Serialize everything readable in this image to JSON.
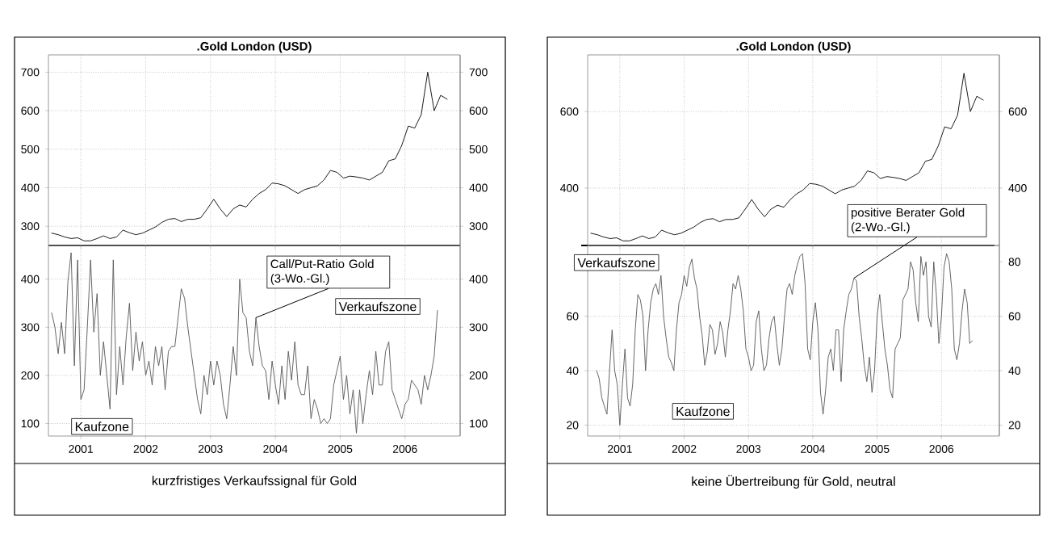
{
  "chart_data": [
    {
      "type": "line",
      "title": ".Gold London (USD)",
      "xlim": [
        2000.5,
        2006.85
      ],
      "ylim": [
        250,
        745
      ],
      "xticks": [
        2001,
        2002,
        2003,
        2004,
        2005,
        2006
      ],
      "yticks": [
        300,
        400,
        500,
        600,
        700
      ],
      "y2lim": [
        250,
        745
      ],
      "y2ticks": [
        300,
        400,
        500,
        600,
        700
      ],
      "grid": true,
      "tick_labels": "y",
      "x": [
        2000.55,
        2000.65,
        2000.75,
        2000.85,
        2000.95,
        2001.05,
        2001.15,
        2001.25,
        2001.35,
        2001.45,
        2001.55,
        2001.65,
        2001.75,
        2001.85,
        2001.95,
        2002.05,
        2002.15,
        2002.25,
        2002.35,
        2002.45,
        2002.55,
        2002.65,
        2002.75,
        2002.85,
        2002.95,
        2003.05,
        2003.15,
        2003.25,
        2003.35,
        2003.45,
        2003.55,
        2003.65,
        2003.75,
        2003.85,
        2003.95,
        2004.05,
        2004.15,
        2004.25,
        2004.35,
        2004.45,
        2004.55,
        2004.65,
        2004.75,
        2004.85,
        2004.95,
        2005.05,
        2005.15,
        2005.25,
        2005.35,
        2005.45,
        2005.55,
        2005.65,
        2005.75,
        2005.85,
        2005.95,
        2006.05,
        2006.15,
        2006.25,
        2006.35,
        2006.45,
        2006.55,
        2006.65
      ],
      "series": [
        {
          "color": "#000000",
          "values": [
            282,
            278,
            272,
            268,
            270,
            262,
            262,
            268,
            275,
            268,
            272,
            290,
            283,
            278,
            282,
            290,
            298,
            310,
            318,
            320,
            312,
            318,
            318,
            322,
            345,
            370,
            345,
            325,
            345,
            355,
            350,
            370,
            385,
            395,
            412,
            410,
            405,
            395,
            385,
            395,
            400,
            405,
            420,
            445,
            440,
            425,
            430,
            428,
            425,
            420,
            430,
            440,
            470,
            475,
            510,
            560,
            555,
            590,
            700,
            600,
            640,
            630
          ]
        }
      ]
    },
    {
      "type": "line",
      "xlim": [
        2000.5,
        2006.85
      ],
      "ylim": [
        74,
        470
      ],
      "xticks": [
        2001,
        2002,
        2003,
        2004,
        2005,
        2006
      ],
      "yticks": [
        100,
        200,
        300,
        400
      ],
      "y2lim": [
        74,
        470
      ],
      "y2ticks": [
        100,
        200,
        300,
        400
      ],
      "grid": true,
      "annotations": [
        {
          "text": "Call/Put-Ratio Gold (3-Wo.-Gl.)",
          "x": 2003.7,
          "y": 320
        },
        "Verkaufszone",
        "Kaufzone",
        "kurzfristiges Verkaufssignal für Gold"
      ],
      "x": [
        2000.55,
        2000.6,
        2000.65,
        2000.7,
        2000.75,
        2000.8,
        2000.85,
        2000.9,
        2000.95,
        2001.0,
        2001.05,
        2001.1,
        2001.15,
        2001.2,
        2001.25,
        2001.3,
        2001.35,
        2001.4,
        2001.45,
        2001.5,
        2001.55,
        2001.6,
        2001.65,
        2001.7,
        2001.75,
        2001.8,
        2001.85,
        2001.9,
        2001.95,
        2002.0,
        2002.05,
        2002.1,
        2002.15,
        2002.2,
        2002.25,
        2002.3,
        2002.35,
        2002.4,
        2002.45,
        2002.5,
        2002.55,
        2002.6,
        2002.65,
        2002.7,
        2002.75,
        2002.8,
        2002.85,
        2002.9,
        2002.95,
        2003.0,
        2003.05,
        2003.1,
        2003.15,
        2003.2,
        2003.25,
        2003.3,
        2003.35,
        2003.4,
        2003.45,
        2003.5,
        2003.55,
        2003.6,
        2003.65,
        2003.7,
        2003.75,
        2003.8,
        2003.85,
        2003.9,
        2003.95,
        2004.0,
        2004.05,
        2004.1,
        2004.15,
        2004.2,
        2004.25,
        2004.3,
        2004.35,
        2004.4,
        2004.45,
        2004.5,
        2004.55,
        2004.6,
        2004.65,
        2004.7,
        2004.75,
        2004.8,
        2004.85,
        2004.9,
        2004.95,
        2005.0,
        2005.05,
        2005.1,
        2005.15,
        2005.2,
        2005.25,
        2005.3,
        2005.35,
        2005.4,
        2005.45,
        2005.5,
        2005.55,
        2005.6,
        2005.65,
        2005.7,
        2005.75,
        2005.8,
        2005.85,
        2005.9,
        2005.95,
        2006.0,
        2006.05,
        2006.1,
        2006.15,
        2006.2,
        2006.25,
        2006.3,
        2006.35,
        2006.4,
        2006.45,
        2006.5
      ],
      "series": [
        {
          "color": "#555555",
          "values": [
            330,
            300,
            245,
            310,
            245,
            395,
            455,
            220,
            440,
            150,
            170,
            300,
            440,
            290,
            370,
            200,
            270,
            200,
            130,
            440,
            160,
            260,
            180,
            280,
            350,
            210,
            290,
            230,
            270,
            200,
            230,
            180,
            260,
            220,
            260,
            170,
            250,
            260,
            260,
            320,
            380,
            360,
            300,
            250,
            200,
            150,
            120,
            200,
            160,
            230,
            180,
            230,
            200,
            140,
            110,
            180,
            260,
            200,
            400,
            330,
            320,
            250,
            220,
            320,
            260,
            220,
            210,
            150,
            230,
            180,
            140,
            220,
            150,
            250,
            190,
            270,
            180,
            160,
            160,
            220,
            110,
            150,
            130,
            100,
            110,
            100,
            110,
            180,
            210,
            240,
            150,
            200,
            120,
            170,
            80,
            170,
            100,
            160,
            210,
            160,
            250,
            180,
            180,
            250,
            270,
            170,
            150,
            130,
            110,
            140,
            150,
            190,
            180,
            170,
            140,
            200,
            170,
            200,
            240,
            335
          ]
        }
      ]
    },
    {
      "type": "line",
      "title": ".Gold London (USD)",
      "xlim": [
        2000.5,
        2006.9
      ],
      "ylim": [
        250,
        748
      ],
      "xticks": [
        2001,
        2002,
        2003,
        2004,
        2005,
        2006
      ],
      "yticks": [
        400,
        600
      ],
      "y2lim": [
        250,
        748
      ],
      "y2ticks": [
        400,
        600
      ],
      "grid": true,
      "tick_labels": "y",
      "x": [
        2000.55,
        2000.65,
        2000.75,
        2000.85,
        2000.95,
        2001.05,
        2001.15,
        2001.25,
        2001.35,
        2001.45,
        2001.55,
        2001.65,
        2001.75,
        2001.85,
        2001.95,
        2002.05,
        2002.15,
        2002.25,
        2002.35,
        2002.45,
        2002.55,
        2002.65,
        2002.75,
        2002.85,
        2002.95,
        2003.05,
        2003.15,
        2003.25,
        2003.35,
        2003.45,
        2003.55,
        2003.65,
        2003.75,
        2003.85,
        2003.95,
        2004.05,
        2004.15,
        2004.25,
        2004.35,
        2004.45,
        2004.55,
        2004.65,
        2004.75,
        2004.85,
        2004.95,
        2005.05,
        2005.15,
        2005.25,
        2005.35,
        2005.45,
        2005.55,
        2005.65,
        2005.75,
        2005.85,
        2005.95,
        2006.05,
        2006.15,
        2006.25,
        2006.35,
        2006.45,
        2006.55,
        2006.65
      ],
      "series": [
        {
          "color": "#000000",
          "values": [
            282,
            278,
            272,
            268,
            270,
            262,
            262,
            268,
            275,
            268,
            272,
            290,
            283,
            278,
            282,
            290,
            298,
            310,
            318,
            320,
            312,
            318,
            318,
            322,
            345,
            370,
            345,
            325,
            345,
            355,
            350,
            370,
            385,
            395,
            412,
            410,
            405,
            395,
            385,
            395,
            400,
            405,
            420,
            445,
            440,
            425,
            430,
            428,
            425,
            420,
            430,
            440,
            470,
            475,
            510,
            560,
            555,
            590,
            700,
            600,
            640,
            630
          ]
        }
      ]
    },
    {
      "type": "line",
      "xlim": [
        2000.5,
        2006.9
      ],
      "ylim": [
        16,
        86
      ],
      "xticks": [
        2001,
        2002,
        2003,
        2004,
        2005,
        2006
      ],
      "yticks": [
        20,
        40,
        60
      ],
      "y2lim": [
        16,
        86
      ],
      "y2ticks": [
        20,
        40,
        60,
        80
      ],
      "grid": true,
      "annotations": [
        {
          "text": "positive Berater Gold (2-Wo.-Gl.)",
          "x": 2004.64,
          "y": 74
        },
        "Verkaufszone",
        "Kaufzone",
        "keine Übertreibung für Gold, neutral"
      ],
      "x": [
        2000.64,
        2000.68,
        2000.72,
        2000.76,
        2000.8,
        2000.84,
        2000.88,
        2000.92,
        2000.96,
        2001.0,
        2001.04,
        2001.08,
        2001.12,
        2001.16,
        2001.2,
        2001.24,
        2001.28,
        2001.32,
        2001.36,
        2001.4,
        2001.44,
        2001.48,
        2001.52,
        2001.56,
        2001.6,
        2001.64,
        2001.68,
        2001.72,
        2001.76,
        2001.8,
        2001.84,
        2001.88,
        2001.92,
        2001.96,
        2002.0,
        2002.04,
        2002.08,
        2002.12,
        2002.16,
        2002.2,
        2002.24,
        2002.28,
        2002.32,
        2002.36,
        2002.4,
        2002.44,
        2002.48,
        2002.52,
        2002.56,
        2002.6,
        2002.64,
        2002.68,
        2002.72,
        2002.76,
        2002.8,
        2002.84,
        2002.88,
        2002.92,
        2002.96,
        2003.0,
        2003.04,
        2003.08,
        2003.12,
        2003.16,
        2003.2,
        2003.24,
        2003.28,
        2003.32,
        2003.36,
        2003.4,
        2003.44,
        2003.48,
        2003.52,
        2003.56,
        2003.6,
        2003.64,
        2003.68,
        2003.72,
        2003.76,
        2003.8,
        2003.84,
        2003.88,
        2003.92,
        2003.96,
        2004.0,
        2004.04,
        2004.08,
        2004.12,
        2004.16,
        2004.2,
        2004.24,
        2004.28,
        2004.32,
        2004.36,
        2004.4,
        2004.44,
        2004.48,
        2004.52,
        2004.56,
        2004.6,
        2004.64,
        2004.68,
        2004.72,
        2004.76,
        2004.8,
        2004.84,
        2004.88,
        2004.92,
        2004.96,
        2005.0,
        2005.04,
        2005.08,
        2005.12,
        2005.16,
        2005.2,
        2005.24,
        2005.28,
        2005.32,
        2005.36,
        2005.4,
        2005.44,
        2005.48,
        2005.52,
        2005.56,
        2005.6,
        2005.64,
        2005.68,
        2005.72,
        2005.76,
        2005.8,
        2005.84,
        2005.88,
        2005.92,
        2005.96,
        2006.0,
        2006.04,
        2006.08,
        2006.12,
        2006.16,
        2006.2,
        2006.24,
        2006.28,
        2006.32,
        2006.36,
        2006.4,
        2006.44,
        2006.48
      ],
      "series": [
        {
          "color": "#555555",
          "values": [
            40,
            37,
            30,
            27,
            24,
            40,
            55,
            40,
            35,
            20,
            35,
            48,
            30,
            27,
            35,
            55,
            68,
            66,
            60,
            40,
            55,
            65,
            70,
            72,
            68,
            75,
            60,
            52,
            45,
            43,
            40,
            55,
            65,
            68,
            75,
            71,
            78,
            81,
            74,
            70,
            60,
            53,
            42,
            47,
            57,
            55,
            46,
            50,
            58,
            54,
            45,
            55,
            62,
            72,
            70,
            75,
            70,
            62,
            48,
            45,
            40,
            42,
            58,
            62,
            48,
            40,
            42,
            52,
            58,
            60,
            50,
            42,
            48,
            60,
            70,
            72,
            68,
            75,
            79,
            82,
            83,
            72,
            48,
            44,
            58,
            65,
            55,
            32,
            24,
            33,
            45,
            48,
            40,
            55,
            55,
            36,
            55,
            62,
            68,
            70,
            74,
            73,
            60,
            52,
            42,
            36,
            45,
            32,
            40,
            60,
            68,
            58,
            48,
            42,
            33,
            30,
            48,
            50,
            52,
            66,
            68,
            70,
            80,
            77,
            65,
            58,
            82,
            75,
            80,
            60,
            56,
            80,
            68,
            50,
            60,
            78,
            83,
            80,
            70,
            48,
            44,
            50,
            62,
            70,
            65,
            50,
            51
          ]
        }
      ]
    }
  ]
}
